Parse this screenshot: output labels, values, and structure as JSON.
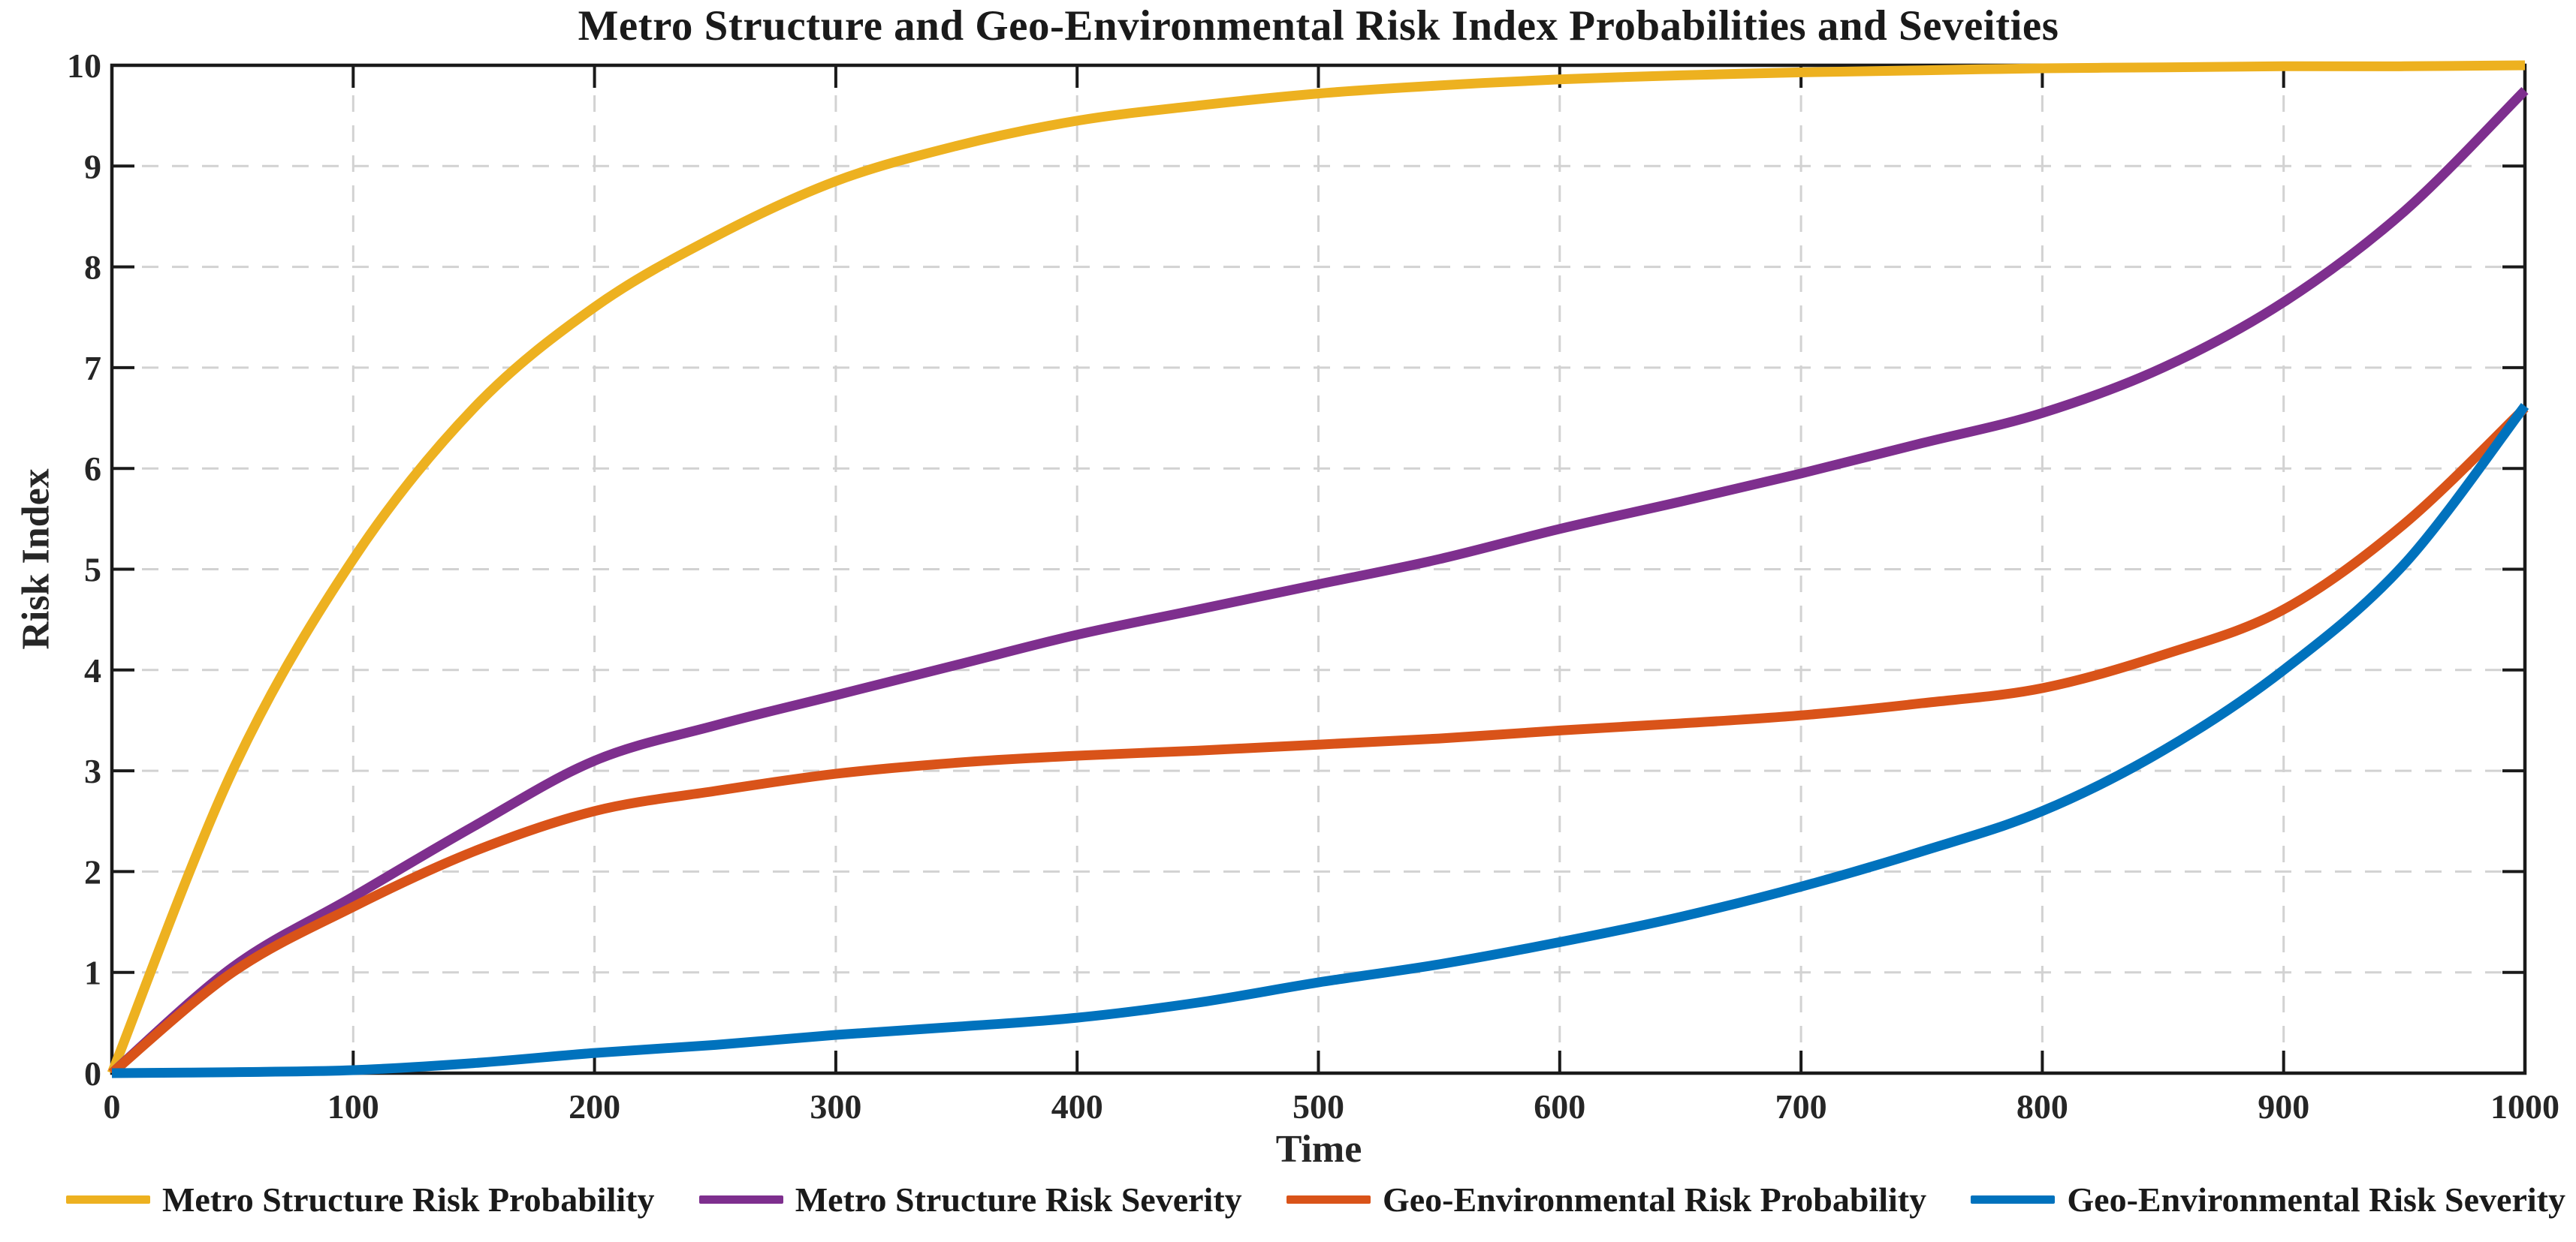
{
  "chart_data": {
    "type": "line",
    "title": "Metro Structure and Geo-Environmental Risk Index Probabilities and Seveities",
    "xlabel": "Time",
    "ylabel": "Risk Index",
    "xlim": [
      0,
      1000
    ],
    "ylim": [
      0,
      10
    ],
    "x_ticks": [
      0,
      100,
      200,
      300,
      400,
      500,
      600,
      700,
      800,
      900,
      1000
    ],
    "y_ticks": [
      0,
      1,
      2,
      3,
      4,
      5,
      6,
      7,
      8,
      9,
      10
    ],
    "grid": "dashed-major-both",
    "grid_color": "#d2d2d2",
    "axis_color": "#1a1a1a",
    "legend_position": "bottom",
    "x": [
      0,
      50,
      100,
      150,
      200,
      250,
      300,
      350,
      400,
      450,
      500,
      550,
      600,
      650,
      700,
      750,
      800,
      850,
      900,
      950,
      1000
    ],
    "series": [
      {
        "name": "Metro Structure Risk Probability",
        "color": "#EDB120",
        "values": [
          0,
          3.0,
          5.1,
          6.6,
          7.6,
          8.3,
          8.85,
          9.2,
          9.45,
          9.6,
          9.72,
          9.8,
          9.86,
          9.9,
          9.93,
          9.95,
          9.97,
          9.98,
          9.99,
          9.99,
          10
        ]
      },
      {
        "name": "Metro Structure Risk Severity",
        "color": "#7E2F8E",
        "values": [
          0,
          1.05,
          1.75,
          2.45,
          3.1,
          3.45,
          3.75,
          4.05,
          4.35,
          4.6,
          4.85,
          5.1,
          5.4,
          5.67,
          5.95,
          6.25,
          6.55,
          7.0,
          7.65,
          8.55,
          9.75
        ]
      },
      {
        "name": "Geo-Environmental Risk Probability",
        "color": "#D95319",
        "values": [
          0,
          1.0,
          1.65,
          2.2,
          2.6,
          2.8,
          2.97,
          3.08,
          3.15,
          3.2,
          3.26,
          3.32,
          3.4,
          3.47,
          3.55,
          3.67,
          3.82,
          4.15,
          4.6,
          5.45,
          6.6
        ]
      },
      {
        "name": "Geo-Environmental Risk Severity",
        "color": "#0072BD",
        "values": [
          0,
          0.01,
          0.03,
          0.1,
          0.2,
          0.28,
          0.38,
          0.46,
          0.55,
          0.7,
          0.9,
          1.08,
          1.3,
          1.55,
          1.85,
          2.2,
          2.6,
          3.2,
          4.0,
          5.05,
          6.62
        ]
      }
    ]
  }
}
